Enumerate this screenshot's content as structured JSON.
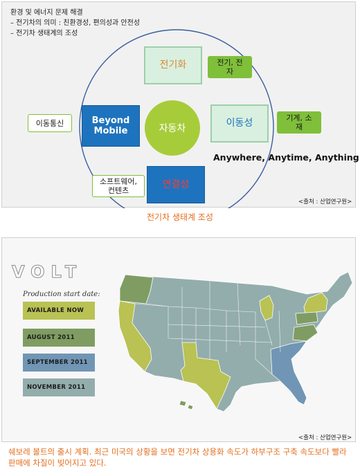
{
  "ecosystem": {
    "intro_lines": [
      "환경 및 에너지 문제 해결",
      "– 전기차의 의미 : 친환경성, 편의성과 안전성",
      "– 전기차 생태계의 조성"
    ],
    "nodes": {
      "electrification": "전기화",
      "beyond_mobile": "Beyond Mobile",
      "car": "자동차",
      "mobility": "이동성",
      "connectivity": "연결성"
    },
    "tags": {
      "electric_electronic": "전기, 전자",
      "telecom": "이동통신",
      "machinery_material": "기계, 소재",
      "software_content": "소프트웨어, 컨텐츠"
    },
    "slogan": "Anywhere, Anytime, Anything",
    "source": "<출처 : 산업연구원>",
    "caption": "전기차 생태계 조성"
  },
  "volt_map": {
    "logo_text": "VOLT",
    "legend_title": "Production start date:",
    "legend": [
      {
        "label": "AVAILABLE NOW",
        "color": "#b9c253"
      },
      {
        "label": "AUGUST 2011",
        "color": "#7f9d62"
      },
      {
        "label": "SEPTEMBER 2011",
        "color": "#7196b5"
      },
      {
        "label": "NOVEMBER 2011",
        "color": "#93adac"
      }
    ],
    "source": "<출처 : 산업연구원>",
    "caption": "쉐보레 볼트의 출시 계획. 최근 미국의 상황을 보면 전기차 상용화 속도가 하부구조 구축 속도보다 빨라 판매에 차질이 빚어지고 있다."
  }
}
